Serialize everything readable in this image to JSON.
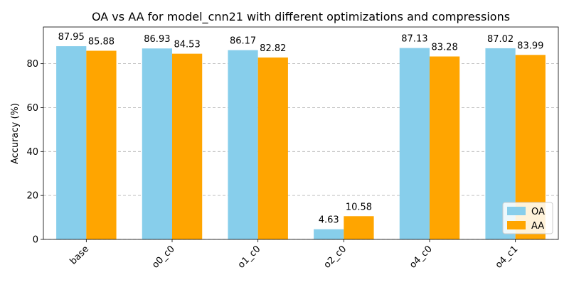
{
  "chart_data": {
    "type": "bar",
    "title": "OA vs AA for model_cnn21 with different optimizations and compressions",
    "xlabel": "",
    "ylabel": "Accuracy (%)",
    "categories": [
      "base",
      "o0_c0",
      "o1_c0",
      "o2_c0",
      "o4_c0",
      "o4_c1"
    ],
    "series": [
      {
        "name": "OA",
        "color": "#87ceeb",
        "values": [
          87.95,
          86.93,
          86.17,
          4.63,
          87.13,
          87.02
        ]
      },
      {
        "name": "AA",
        "color": "#ffa500",
        "values": [
          85.88,
          84.53,
          82.82,
          10.58,
          83.28,
          83.99
        ]
      }
    ],
    "ylim": [
      0,
      96.7
    ],
    "yticks": [
      0,
      20,
      40,
      60,
      80
    ],
    "grid": "y-dashed",
    "legend": "lower-right"
  }
}
